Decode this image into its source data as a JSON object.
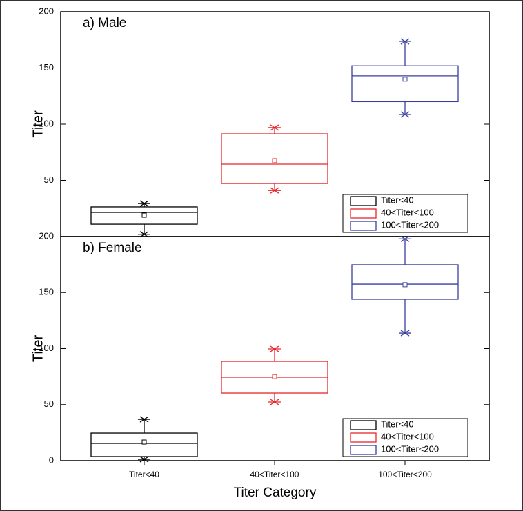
{
  "chart_data": [
    {
      "type": "box",
      "title": "a) Male",
      "ylabel": "Titer",
      "categories": [
        "Titer<40",
        "40<Titer<100",
        "100<Titer<200"
      ],
      "colors": [
        "#000000",
        "#e8262a",
        "#3a3f9e"
      ],
      "boxes": [
        {
          "min": 2,
          "q1": 11,
          "median": 21.5,
          "q3": 26.4,
          "max": 29.4,
          "mean": 19
        },
        {
          "min": 41,
          "q1": 47.2,
          "median": 64.4,
          "q3": 91.4,
          "max": 97,
          "mean": 67.5
        },
        {
          "min": 108.6,
          "q1": 120,
          "median": 143,
          "q3": 152,
          "max": 173.6,
          "mean": 140
        }
      ],
      "ylim": [
        0,
        200
      ],
      "yticks": [
        50,
        100,
        150,
        200
      ],
      "legend": "lower right"
    },
    {
      "type": "box",
      "title": "b) Female",
      "ylabel": "Titer",
      "xlabel": "Titer Category",
      "categories": [
        "Titer<40",
        "40<Titer<100",
        "100<Titer<200"
      ],
      "colors": [
        "#000000",
        "#e8262a",
        "#3a3f9e"
      ],
      "boxes": [
        {
          "min": 1.2,
          "q1": 3.7,
          "median": 15.4,
          "q3": 24.6,
          "max": 36.9,
          "mean": 16.6
        },
        {
          "min": 52.3,
          "q1": 60.3,
          "median": 74.5,
          "q3": 88.6,
          "max": 99.7,
          "mean": 75
        },
        {
          "min": 113.8,
          "q1": 144,
          "median": 157.5,
          "q3": 174.8,
          "max": 198,
          "mean": 157
        }
      ],
      "ylim": [
        0,
        200
      ],
      "yticks": [
        0,
        50,
        100,
        150,
        200
      ],
      "legend": "lower right"
    }
  ]
}
